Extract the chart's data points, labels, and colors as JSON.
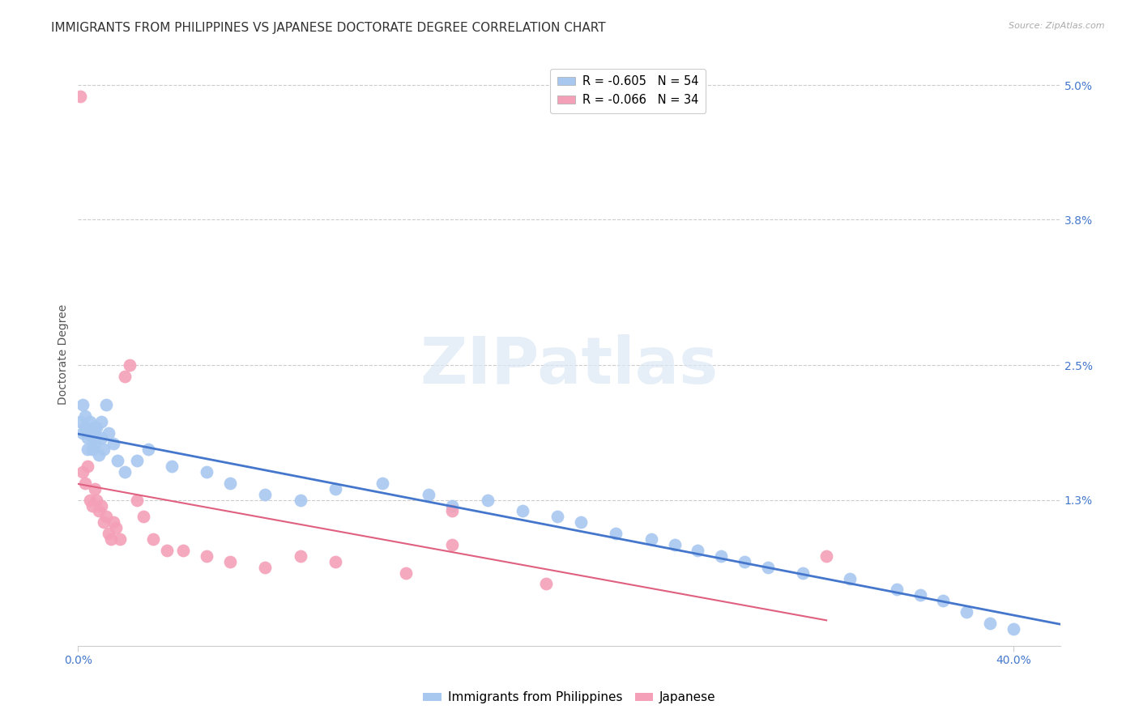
{
  "title": "IMMIGRANTS FROM PHILIPPINES VS JAPANESE DOCTORATE DEGREE CORRELATION CHART",
  "source": "Source: ZipAtlas.com",
  "ylabel": "Doctorate Degree",
  "watermark": "ZIPatlas",
  "xlim": [
    0.0,
    0.42
  ],
  "ylim": [
    0.0,
    0.052
  ],
  "xticks": [
    0.0,
    0.4
  ],
  "xtick_labels": [
    "0.0%",
    "40.0%"
  ],
  "yticks": [
    0.013,
    0.025,
    0.038,
    0.05
  ],
  "ytick_labels": [
    "1.3%",
    "2.5%",
    "3.8%",
    "5.0%"
  ],
  "legend_entries": [
    {
      "label": "R = -0.605   N = 54",
      "color": "#a8c8f0"
    },
    {
      "label": "R = -0.066   N = 34",
      "color": "#f4a0b8"
    }
  ],
  "series_blue": {
    "color": "#a8c8f0",
    "line_color": "#4477cc",
    "x": [
      0.001,
      0.002,
      0.002,
      0.003,
      0.003,
      0.004,
      0.004,
      0.005,
      0.005,
      0.006,
      0.006,
      0.007,
      0.007,
      0.008,
      0.008,
      0.009,
      0.01,
      0.01,
      0.011,
      0.012,
      0.013,
      0.015,
      0.017,
      0.02,
      0.025,
      0.03,
      0.04,
      0.055,
      0.065,
      0.08,
      0.095,
      0.11,
      0.13,
      0.15,
      0.16,
      0.175,
      0.19,
      0.205,
      0.215,
      0.23,
      0.245,
      0.255,
      0.265,
      0.275,
      0.285,
      0.295,
      0.31,
      0.33,
      0.35,
      0.36,
      0.37,
      0.38,
      0.39,
      0.4
    ],
    "y": [
      0.02,
      0.019,
      0.0215,
      0.0195,
      0.0205,
      0.0185,
      0.0175,
      0.019,
      0.02,
      0.0185,
      0.0175,
      0.0195,
      0.018,
      0.0185,
      0.0195,
      0.017,
      0.0185,
      0.02,
      0.0175,
      0.0215,
      0.019,
      0.018,
      0.0165,
      0.0155,
      0.0165,
      0.0175,
      0.016,
      0.0155,
      0.0145,
      0.0135,
      0.013,
      0.014,
      0.0145,
      0.0135,
      0.0125,
      0.013,
      0.012,
      0.0115,
      0.011,
      0.01,
      0.0095,
      0.009,
      0.0085,
      0.008,
      0.0075,
      0.007,
      0.0065,
      0.006,
      0.005,
      0.0045,
      0.004,
      0.003,
      0.002,
      0.0015
    ]
  },
  "series_pink": {
    "color": "#f4a0b8",
    "line_color": "#e06080",
    "x": [
      0.001,
      0.002,
      0.003,
      0.004,
      0.005,
      0.006,
      0.007,
      0.008,
      0.009,
      0.01,
      0.011,
      0.012,
      0.013,
      0.014,
      0.015,
      0.016,
      0.018,
      0.02,
      0.022,
      0.025,
      0.028,
      0.032,
      0.038,
      0.045,
      0.055,
      0.065,
      0.08,
      0.095,
      0.11,
      0.14,
      0.16,
      0.2,
      0.32,
      0.16
    ],
    "y": [
      0.049,
      0.0155,
      0.0145,
      0.016,
      0.013,
      0.0125,
      0.014,
      0.013,
      0.012,
      0.0125,
      0.011,
      0.0115,
      0.01,
      0.0095,
      0.011,
      0.0105,
      0.0095,
      0.024,
      0.025,
      0.013,
      0.0115,
      0.0095,
      0.0085,
      0.0085,
      0.008,
      0.0075,
      0.007,
      0.008,
      0.0075,
      0.0065,
      0.009,
      0.0055,
      0.008,
      0.012
    ]
  },
  "background_color": "#ffffff",
  "grid_color": "#cccccc",
  "axis_label_color": "#4477cc",
  "title_color": "#333333",
  "title_fontsize": 11,
  "axis_label_fontsize": 10,
  "tick_fontsize": 10
}
